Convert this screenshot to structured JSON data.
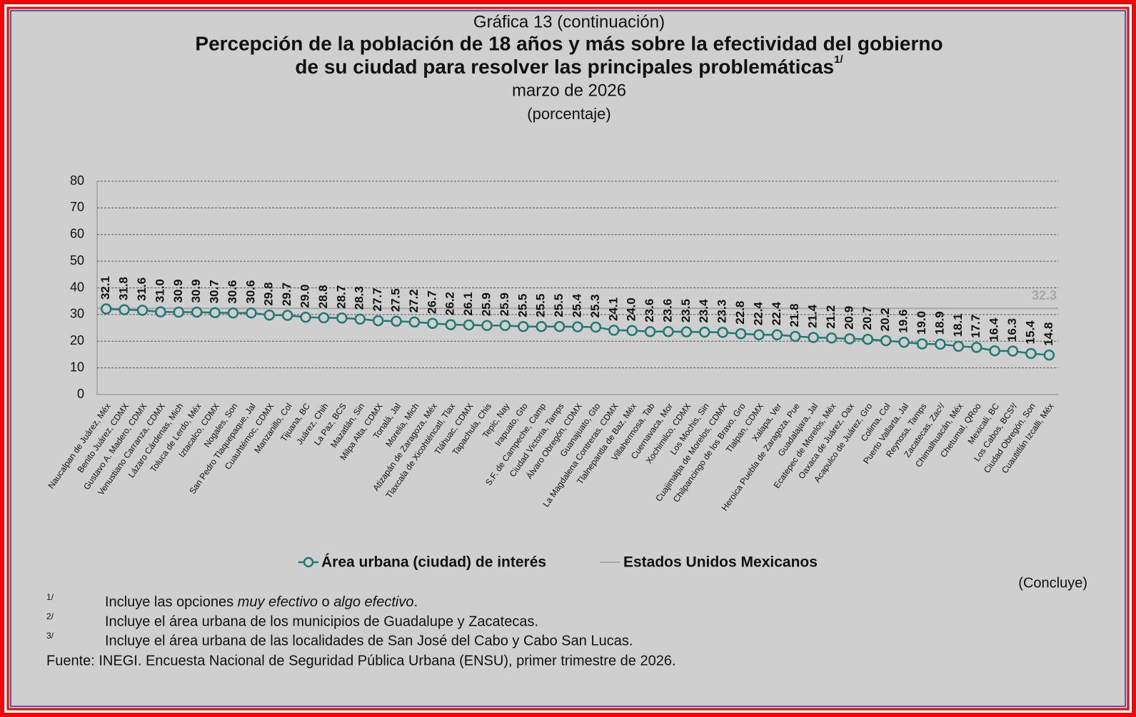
{
  "chart_data": {
    "type": "line",
    "supertitle": "Gráfica 13 (continuación)",
    "title_lines": [
      "Percepción de la población de 18 años y más sobre la efectividad del gobierno",
      "de su ciudad para resolver las principales problemáticas"
    ],
    "title_note": "1/",
    "subtitle": "marzo de 2026",
    "unit": "(porcentaje)",
    "categories": [
      "Naucalpan de Juárez, Méx",
      "Benito Juárez, CDMX",
      "Gustavo A. Madero, CDMX",
      "Venustiano Carranza, CDMX",
      "Lázaro Cárdenas, Mich",
      "Toluca de Lerdo, Méx",
      "Iztacalco, CDMX",
      "Nogales, Son",
      "San Pedro Tlaquepaque, Jal",
      "Cuauhtémoc, CDMX",
      "Manzanillo, Col",
      "Tijuana, BC",
      "Juárez, Chih",
      "La Paz, BCS",
      "Mazatlán, Sin",
      "Milpa Alta, CDMX",
      "Tonalá, Jal",
      "Morelia, Mich",
      "Atizapán de Zaragoza, Méx",
      "Tlaxcala de Xicohténcatl, Tlax",
      "Tláhuac, CDMX",
      "Tapachula, Chis",
      "Tepic, Nay",
      "Irapuato, Gto",
      "S.F. de Campeche, Camp",
      "Ciudad Victoria, Tamps",
      "Álvaro Obregón, CDMX",
      "Guanajuato, Gto",
      "La Magdalena Contreras, CDMX",
      "Tlalnepantla de Baz, Méx",
      "Villahermosa, Tab",
      "Cuernavaca, Mor",
      "Xochimilco, CDMX",
      "Los Mochis, Sin",
      "Cuajimalpa de Morelos, CDMX",
      "Chilpancingo de los Bravo, Gro",
      "Tlalpan, CDMX",
      "Xalapa, Ver",
      "Heroica Puebla de Zaragoza, Pue",
      "Guadalajara, Jal",
      "Ecatepec de Morelos, Méx",
      "Oaxaca de Juárez, Oax",
      "Acapulco de Juárez, Gro",
      "Colima, Col",
      "Puerto Vallarta, Jal",
      "Reynosa, Tamps",
      "Zacatecas, Zac²/",
      "Chimalhuacán, Méx",
      "Chetumal, QRoo",
      "Mexicali, BC",
      "Los Cabos, BCS³/",
      "Ciudad Obregón, Son",
      "Cuautitlán Izcalli, Méx"
    ],
    "series": [
      {
        "name": "Área urbana (ciudad) de interés",
        "color": "#1e7b72",
        "values": [
          32.1,
          31.8,
          31.6,
          31.0,
          30.9,
          30.9,
          30.7,
          30.6,
          30.6,
          29.8,
          29.7,
          29.0,
          28.8,
          28.7,
          28.3,
          27.7,
          27.5,
          27.2,
          26.7,
          26.2,
          26.1,
          25.9,
          25.9,
          25.5,
          25.5,
          25.5,
          25.4,
          25.3,
          24.1,
          24.0,
          23.6,
          23.6,
          23.5,
          23.4,
          23.3,
          22.8,
          22.4,
          22.4,
          21.8,
          21.4,
          21.2,
          20.9,
          20.7,
          20.2,
          19.6,
          19.0,
          18.9,
          18.1,
          17.7,
          16.4,
          16.3,
          15.4,
          14.8
        ],
        "value_labels": [
          "32.1",
          "31.8",
          "31.6",
          "31.0",
          "30.9",
          "30.9",
          "30.7",
          "30.6",
          "30.6",
          "29.8",
          "29.7",
          "29.0",
          "28.8",
          "28.7",
          "28.3",
          "27.7",
          "27.5",
          "27.2",
          "26.7",
          "26.2",
          "26.1",
          "25.9",
          "25.9",
          "25.5",
          "25.5",
          "25.5",
          "25.4",
          "25.3",
          "24.1",
          "24.0",
          "23.6",
          "23.6",
          "23.5",
          "23.4",
          "23.3",
          "22.8",
          "22.4",
          "22.4",
          "21.8",
          "21.4",
          "21.2",
          "20.9",
          "20.7",
          "20.2",
          "19.6",
          "19.0",
          "18.9",
          "18.1",
          "17.7",
          "16.4",
          "16.3",
          "15.4",
          "14.8"
        ]
      }
    ],
    "reference": {
      "name": "Estados Unidos Mexicanos",
      "value": 32.3,
      "color": "#a6a6a6"
    },
    "ylim": [
      0,
      80
    ],
    "yticks": [
      0,
      10,
      20,
      30,
      40,
      50,
      60,
      70,
      80
    ],
    "grid": true
  },
  "status": "(Concluye)",
  "footnotes": [
    {
      "mark": "1/",
      "parts": [
        "Incluye las opciones ",
        "muy efectivo",
        " o ",
        "algo efectivo",
        "."
      ]
    },
    {
      "mark": "2/",
      "text": "Incluye el área urbana de los municipios de Guadalupe y Zacatecas."
    },
    {
      "mark": "3/",
      "text": "Incluye el área urbana de las localidades de San José del Cabo y Cabo San Lucas."
    }
  ],
  "source": "Fuente: INEGI. Encuesta Nacional de Seguridad Pública Urbana (ENSU), primer trimestre de 2026."
}
